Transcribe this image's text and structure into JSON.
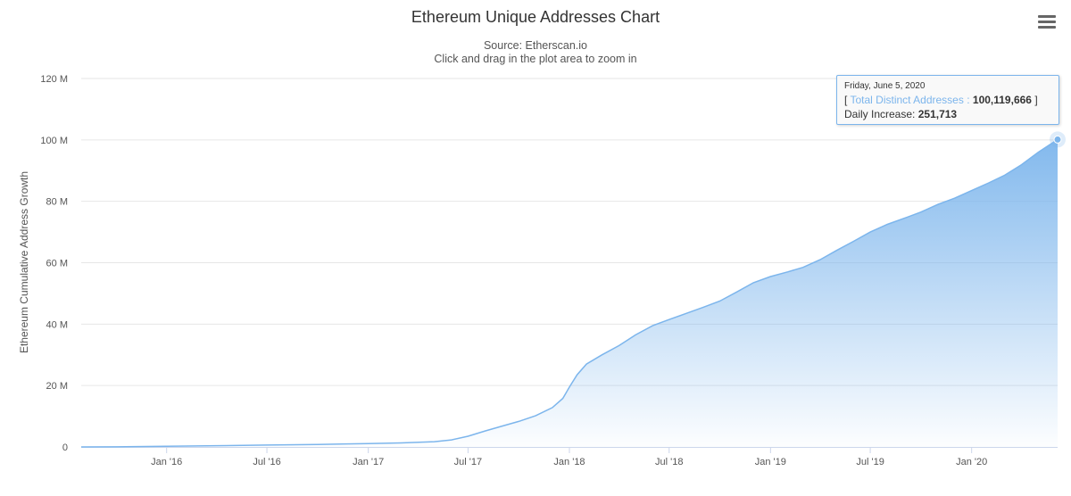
{
  "chart_data": {
    "type": "area",
    "title": "Ethereum Unique Addresses Chart",
    "subtitle": "Source: Etherscan.io",
    "subtitle2": "Click and drag in the plot area to zoom in",
    "ylabel": "Ethereum Cumulative Address Growth",
    "xlabel": "",
    "ylim": [
      0,
      120000000
    ],
    "y_ticks": [
      {
        "value": 0,
        "label": "0"
      },
      {
        "value": 20000000,
        "label": "20 M"
      },
      {
        "value": 40000000,
        "label": "40 M"
      },
      {
        "value": 60000000,
        "label": "60 M"
      },
      {
        "value": 80000000,
        "label": "80 M"
      },
      {
        "value": 100000000,
        "label": "100 M"
      },
      {
        "value": 120000000,
        "label": "120 M"
      }
    ],
    "x_range": [
      "2015-07-30",
      "2020-06-05"
    ],
    "x_ticks": [
      {
        "date": "2016-01-01",
        "label": "Jan '16"
      },
      {
        "date": "2016-07-01",
        "label": "Jul '16"
      },
      {
        "date": "2017-01-01",
        "label": "Jan '17"
      },
      {
        "date": "2017-07-01",
        "label": "Jul '17"
      },
      {
        "date": "2018-01-01",
        "label": "Jan '18"
      },
      {
        "date": "2018-07-01",
        "label": "Jul '18"
      },
      {
        "date": "2019-01-01",
        "label": "Jan '19"
      },
      {
        "date": "2019-07-01",
        "label": "Jul '19"
      },
      {
        "date": "2020-01-01",
        "label": "Jan '20"
      }
    ],
    "grid": true,
    "legend": "none",
    "color": "#7cb5ec",
    "series": [
      {
        "x": [
          "2015-07-30",
          "2015-10-01",
          "2016-01-01",
          "2016-04-01",
          "2016-07-01",
          "2016-10-01",
          "2017-01-01",
          "2017-03-01",
          "2017-05-01",
          "2017-06-01",
          "2017-07-01",
          "2017-08-01",
          "2017-09-01",
          "2017-10-01",
          "2017-11-01",
          "2017-12-01",
          "2017-12-20",
          "2018-01-01",
          "2018-01-15",
          "2018-02-01",
          "2018-03-01",
          "2018-04-01",
          "2018-05-01",
          "2018-06-01",
          "2018-07-01",
          "2018-08-01",
          "2018-09-01",
          "2018-10-01",
          "2018-11-01",
          "2018-12-01",
          "2019-01-01",
          "2019-02-01",
          "2019-03-01",
          "2019-04-01",
          "2019-05-01",
          "2019-06-01",
          "2019-07-01",
          "2019-08-01",
          "2019-09-01",
          "2019-10-01",
          "2019-11-01",
          "2019-12-01",
          "2020-01-01",
          "2020-02-01",
          "2020-03-01",
          "2020-04-01",
          "2020-05-01",
          "2020-06-05"
        ],
        "y": [
          0,
          30000,
          200000,
          400000,
          600000,
          800000,
          1100000,
          1300000,
          1700000,
          2300000,
          3500000,
          5200000,
          6800000,
          8300000,
          10200000,
          12800000,
          15800000,
          19500000,
          23500000,
          27000000,
          30000000,
          33000000,
          36500000,
          39500000,
          41500000,
          43500000,
          45500000,
          47500000,
          50500000,
          53500000,
          55500000,
          57000000,
          58500000,
          61000000,
          64000000,
          67000000,
          70000000,
          72500000,
          74500000,
          76500000,
          79000000,
          81000000,
          83500000,
          86000000,
          88500000,
          92000000,
          96000000,
          100119666
        ]
      }
    ]
  },
  "tooltip": {
    "date": "Friday, June 5, 2020",
    "open_bracket": "[",
    "series_label": "Total Distinct Addresses",
    "separator": ":",
    "value": "100,119,666",
    "close_bracket": "]",
    "increase_label": "Daily Increase:",
    "increase_value": "251,713"
  },
  "menu": {
    "icon": "hamburger-menu-icon"
  }
}
